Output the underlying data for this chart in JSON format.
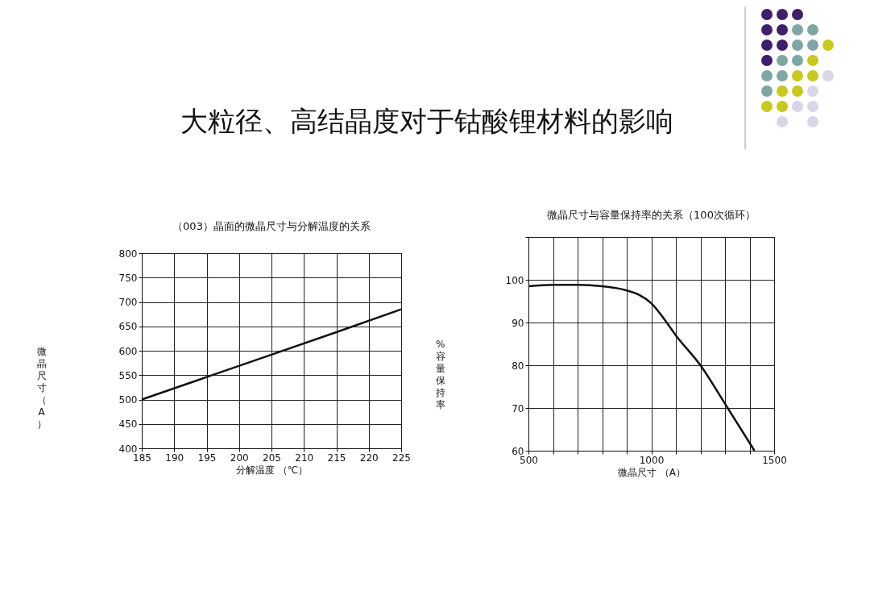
{
  "chart_data": [
    {
      "type": "line",
      "annotations": [
        "大粒径、高结晶度对于钴酸锂材料的影响"
      ],
      "title": "（003）晶面的微晶尺寸与分解温度的关系",
      "xlabel": "分解温度 （℃）",
      "ylabel": "微晶尺寸（A）",
      "x": [
        185,
        195,
        205,
        215,
        225
      ],
      "series": [
        {
          "color": "#111111",
          "values": [
            500,
            546,
            592,
            638,
            685
          ]
        }
      ],
      "xlim": [
        185,
        225
      ],
      "xticks": [
        185,
        190,
        195,
        200,
        205,
        210,
        215,
        220,
        225
      ],
      "ylim": [
        400,
        800
      ],
      "yticks": [
        400,
        450,
        500,
        550,
        600,
        650,
        700,
        750,
        800
      ],
      "grid": true
    },
    {
      "type": "line",
      "title": "微晶尺寸与容量保持率的关系（100次循环）",
      "xlabel": "微晶尺寸 （A）",
      "ylabel": "%容量保持率",
      "x": [
        500,
        600,
        700,
        800,
        900,
        950,
        1000,
        1050,
        1100,
        1200,
        1300,
        1420
      ],
      "series": [
        {
          "color": "#111111",
          "values": [
            98.5,
            98.8,
            98.8,
            98.5,
            97.5,
            96.5,
            94.5,
            91,
            87,
            80,
            71,
            60
          ]
        }
      ],
      "xlim": [
        500,
        1500
      ],
      "xticks": [
        500,
        {
          "value": 600,
          "label": null
        },
        {
          "value": 700,
          "label": null
        },
        {
          "value": 800,
          "label": null
        },
        {
          "value": 900,
          "label": null
        },
        1000,
        {
          "value": 1100,
          "label": null
        },
        {
          "value": 1200,
          "label": null
        },
        {
          "value": 1300,
          "label": null
        },
        {
          "value": 1400,
          "label": null
        },
        1500
      ],
      "ylim": [
        60,
        110
      ],
      "yticks": [
        60,
        70,
        80,
        90,
        100,
        {
          "value": 110,
          "label": null
        }
      ],
      "grid": true
    }
  ]
}
